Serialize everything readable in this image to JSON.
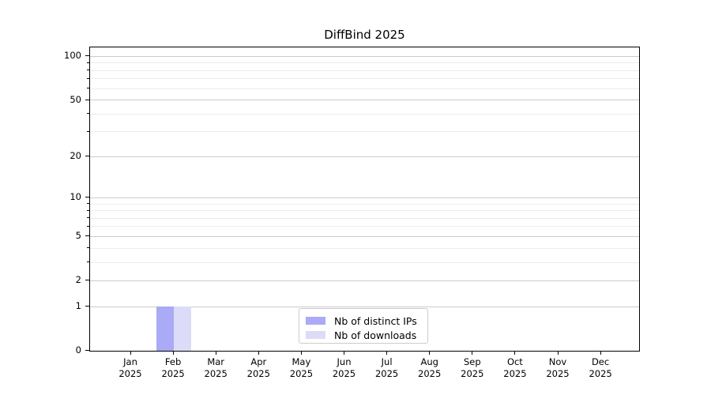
{
  "chart_data": {
    "type": "bar",
    "title": "DiffBind 2025",
    "categories": [
      "Jan 2025",
      "Feb 2025",
      "Mar 2025",
      "Apr 2025",
      "May 2025",
      "Jun 2025",
      "Jul 2025",
      "Aug 2025",
      "Sep 2025",
      "Oct 2025",
      "Nov 2025",
      "Dec 2025"
    ],
    "series": [
      {
        "name": "Nb of distinct IPs",
        "color": "#aaaaf7",
        "values": [
          0,
          1,
          0,
          0,
          0,
          0,
          0,
          0,
          0,
          0,
          0,
          0
        ]
      },
      {
        "name": "Nb of downloads",
        "color": "#dcdcf9",
        "values": [
          0,
          1,
          0,
          0,
          0,
          0,
          0,
          0,
          0,
          0,
          0,
          0
        ]
      }
    ],
    "xlabel": "",
    "ylabel": "",
    "y_axis": {
      "scale": "log1p",
      "max": 115.3,
      "major_ticks": [
        0,
        1,
        2,
        5,
        10,
        20,
        50,
        100
      ],
      "tick_labels": [
        "0",
        "1",
        "2",
        "5",
        "10",
        "20",
        "50",
        "100"
      ],
      "minor_ticks": [
        3,
        4,
        6,
        7,
        8,
        9,
        30,
        40,
        60,
        70,
        80,
        90
      ]
    },
    "grid": true,
    "legend": {
      "position": "bottom-center",
      "entries": [
        "Nb of distinct IPs",
        "Nb of downloads"
      ]
    },
    "colors": {
      "grid_major": "#cbcbcb",
      "grid_minor": "#ececec",
      "spine": "#000000",
      "background": "#ffffff"
    }
  }
}
